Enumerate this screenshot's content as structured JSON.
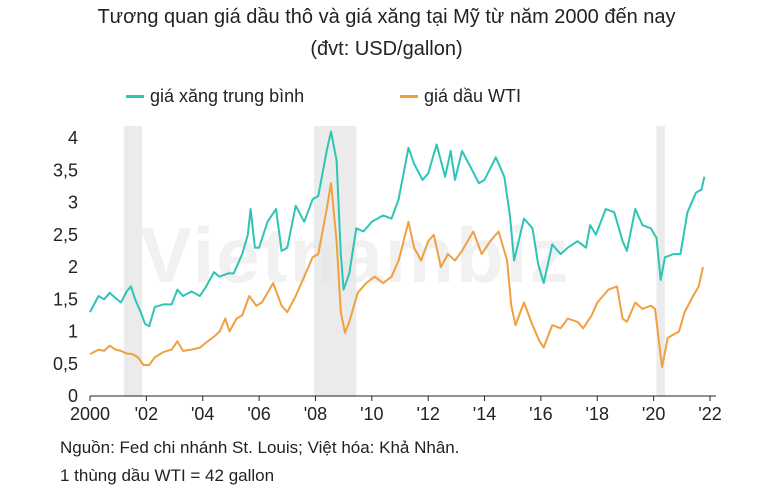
{
  "title_line1": "Tương quan giá dầu thô và giá xăng tại Mỹ từ năm 2000 đến nay",
  "title_line2": "(đvt: USD/gallon)",
  "source_line1": "Nguồn: Fed chi nhánh St. Louis; Việt hóa: Khả Nhân.",
  "source_line2": "1 thùng dầu WTI = 42 gallon",
  "watermark": "Vietnambiz",
  "colors": {
    "gas": "#2ec4b6",
    "oil": "#f0a040",
    "recession": "#e6e6e6",
    "axis": "#222222"
  },
  "chart_data": {
    "type": "line",
    "xlim": [
      2000,
      2022
    ],
    "ylim": [
      0,
      4
    ],
    "grid": false,
    "legend_position": "top",
    "x_ticks": [
      {
        "value": 2000,
        "label": "2000"
      },
      {
        "value": 2002,
        "label": "'02"
      },
      {
        "value": 2004,
        "label": "'04"
      },
      {
        "value": 2006,
        "label": "'06"
      },
      {
        "value": 2008,
        "label": "'08"
      },
      {
        "value": 2010,
        "label": "'10"
      },
      {
        "value": 2012,
        "label": "'12"
      },
      {
        "value": 2014,
        "label": "'14"
      },
      {
        "value": 2016,
        "label": "'16"
      },
      {
        "value": 2018,
        "label": "'18"
      },
      {
        "value": 2020,
        "label": "'20"
      },
      {
        "value": 2022,
        "label": "'22"
      }
    ],
    "y_ticks": [
      {
        "value": 0,
        "label": "0"
      },
      {
        "value": 0.5,
        "label": "0,5"
      },
      {
        "value": 1,
        "label": "1"
      },
      {
        "value": 1.5,
        "label": "1,5"
      },
      {
        "value": 2,
        "label": "2"
      },
      {
        "value": 2.5,
        "label": "2,5"
      },
      {
        "value": 3,
        "label": "3"
      },
      {
        "value": 3.5,
        "label": "3,5"
      },
      {
        "value": 4,
        "label": "4"
      }
    ],
    "recessions": [
      [
        2001.2,
        2001.85
      ],
      [
        2007.95,
        2009.45
      ],
      [
        2020.1,
        2020.4
      ]
    ],
    "series": [
      {
        "name": "giá xăng trung bình",
        "color": "#2ec4b6",
        "points": [
          [
            2000.0,
            1.3
          ],
          [
            2000.3,
            1.55
          ],
          [
            2000.5,
            1.5
          ],
          [
            2000.7,
            1.6
          ],
          [
            2000.9,
            1.52
          ],
          [
            2001.1,
            1.45
          ],
          [
            2001.3,
            1.62
          ],
          [
            2001.45,
            1.7
          ],
          [
            2001.6,
            1.5
          ],
          [
            2001.8,
            1.3
          ],
          [
            2001.95,
            1.12
          ],
          [
            2002.1,
            1.08
          ],
          [
            2002.3,
            1.38
          ],
          [
            2002.6,
            1.42
          ],
          [
            2002.9,
            1.42
          ],
          [
            2003.1,
            1.65
          ],
          [
            2003.3,
            1.55
          ],
          [
            2003.6,
            1.62
          ],
          [
            2003.9,
            1.55
          ],
          [
            2004.1,
            1.68
          ],
          [
            2004.4,
            1.92
          ],
          [
            2004.6,
            1.85
          ],
          [
            2004.9,
            1.9
          ],
          [
            2005.1,
            1.9
          ],
          [
            2005.4,
            2.2
          ],
          [
            2005.6,
            2.5
          ],
          [
            2005.7,
            2.9
          ],
          [
            2005.85,
            2.3
          ],
          [
            2006.0,
            2.3
          ],
          [
            2006.3,
            2.7
          ],
          [
            2006.6,
            2.9
          ],
          [
            2006.8,
            2.25
          ],
          [
            2007.0,
            2.3
          ],
          [
            2007.3,
            2.95
          ],
          [
            2007.6,
            2.7
          ],
          [
            2007.9,
            3.05
          ],
          [
            2008.1,
            3.1
          ],
          [
            2008.4,
            3.8
          ],
          [
            2008.55,
            4.1
          ],
          [
            2008.75,
            3.65
          ],
          [
            2008.9,
            2.2
          ],
          [
            2009.0,
            1.65
          ],
          [
            2009.2,
            1.9
          ],
          [
            2009.45,
            2.6
          ],
          [
            2009.7,
            2.55
          ],
          [
            2010.0,
            2.7
          ],
          [
            2010.4,
            2.8
          ],
          [
            2010.7,
            2.75
          ],
          [
            2010.95,
            3.05
          ],
          [
            2011.3,
            3.85
          ],
          [
            2011.5,
            3.6
          ],
          [
            2011.8,
            3.35
          ],
          [
            2012.0,
            3.45
          ],
          [
            2012.3,
            3.9
          ],
          [
            2012.6,
            3.4
          ],
          [
            2012.8,
            3.8
          ],
          [
            2012.95,
            3.35
          ],
          [
            2013.2,
            3.8
          ],
          [
            2013.5,
            3.55
          ],
          [
            2013.8,
            3.3
          ],
          [
            2014.0,
            3.35
          ],
          [
            2014.4,
            3.7
          ],
          [
            2014.7,
            3.4
          ],
          [
            2014.9,
            2.8
          ],
          [
            2015.05,
            2.1
          ],
          [
            2015.4,
            2.75
          ],
          [
            2015.7,
            2.6
          ],
          [
            2015.9,
            2.05
          ],
          [
            2016.1,
            1.75
          ],
          [
            2016.4,
            2.35
          ],
          [
            2016.7,
            2.2
          ],
          [
            2016.95,
            2.3
          ],
          [
            2017.3,
            2.4
          ],
          [
            2017.6,
            2.3
          ],
          [
            2017.75,
            2.65
          ],
          [
            2017.95,
            2.5
          ],
          [
            2018.3,
            2.9
          ],
          [
            2018.6,
            2.85
          ],
          [
            2018.9,
            2.4
          ],
          [
            2019.05,
            2.25
          ],
          [
            2019.35,
            2.9
          ],
          [
            2019.6,
            2.65
          ],
          [
            2019.9,
            2.6
          ],
          [
            2020.1,
            2.45
          ],
          [
            2020.25,
            1.8
          ],
          [
            2020.4,
            2.15
          ],
          [
            2020.7,
            2.2
          ],
          [
            2020.95,
            2.2
          ],
          [
            2021.2,
            2.85
          ],
          [
            2021.5,
            3.15
          ],
          [
            2021.7,
            3.2
          ],
          [
            2021.8,
            3.4
          ]
        ]
      },
      {
        "name": "giá dầu WTI",
        "color": "#f0a040",
        "points": [
          [
            2000.0,
            0.65
          ],
          [
            2000.3,
            0.72
          ],
          [
            2000.5,
            0.7
          ],
          [
            2000.7,
            0.78
          ],
          [
            2000.9,
            0.72
          ],
          [
            2001.1,
            0.7
          ],
          [
            2001.3,
            0.66
          ],
          [
            2001.5,
            0.65
          ],
          [
            2001.7,
            0.6
          ],
          [
            2001.9,
            0.48
          ],
          [
            2002.1,
            0.48
          ],
          [
            2002.3,
            0.6
          ],
          [
            2002.6,
            0.68
          ],
          [
            2002.9,
            0.72
          ],
          [
            2003.1,
            0.85
          ],
          [
            2003.3,
            0.7
          ],
          [
            2003.6,
            0.72
          ],
          [
            2003.9,
            0.75
          ],
          [
            2004.1,
            0.82
          ],
          [
            2004.4,
            0.92
          ],
          [
            2004.6,
            1.0
          ],
          [
            2004.8,
            1.2
          ],
          [
            2004.95,
            1.0
          ],
          [
            2005.2,
            1.2
          ],
          [
            2005.4,
            1.25
          ],
          [
            2005.65,
            1.55
          ],
          [
            2005.9,
            1.4
          ],
          [
            2006.1,
            1.45
          ],
          [
            2006.5,
            1.75
          ],
          [
            2006.8,
            1.4
          ],
          [
            2007.0,
            1.3
          ],
          [
            2007.3,
            1.55
          ],
          [
            2007.6,
            1.85
          ],
          [
            2007.9,
            2.15
          ],
          [
            2008.1,
            2.2
          ],
          [
            2008.4,
            2.9
          ],
          [
            2008.55,
            3.3
          ],
          [
            2008.75,
            2.4
          ],
          [
            2008.9,
            1.3
          ],
          [
            2009.05,
            0.98
          ],
          [
            2009.2,
            1.15
          ],
          [
            2009.5,
            1.6
          ],
          [
            2009.8,
            1.75
          ],
          [
            2010.1,
            1.85
          ],
          [
            2010.4,
            1.75
          ],
          [
            2010.7,
            1.85
          ],
          [
            2010.95,
            2.1
          ],
          [
            2011.3,
            2.7
          ],
          [
            2011.5,
            2.3
          ],
          [
            2011.75,
            2.1
          ],
          [
            2012.0,
            2.4
          ],
          [
            2012.2,
            2.5
          ],
          [
            2012.45,
            2.0
          ],
          [
            2012.7,
            2.2
          ],
          [
            2012.95,
            2.1
          ],
          [
            2013.2,
            2.25
          ],
          [
            2013.6,
            2.55
          ],
          [
            2013.9,
            2.2
          ],
          [
            2014.2,
            2.4
          ],
          [
            2014.5,
            2.55
          ],
          [
            2014.8,
            2.1
          ],
          [
            2014.95,
            1.4
          ],
          [
            2015.1,
            1.1
          ],
          [
            2015.4,
            1.45
          ],
          [
            2015.7,
            1.1
          ],
          [
            2015.95,
            0.85
          ],
          [
            2016.1,
            0.75
          ],
          [
            2016.4,
            1.1
          ],
          [
            2016.7,
            1.05
          ],
          [
            2016.95,
            1.2
          ],
          [
            2017.3,
            1.15
          ],
          [
            2017.5,
            1.05
          ],
          [
            2017.8,
            1.25
          ],
          [
            2018.0,
            1.45
          ],
          [
            2018.4,
            1.65
          ],
          [
            2018.7,
            1.7
          ],
          [
            2018.9,
            1.2
          ],
          [
            2019.05,
            1.15
          ],
          [
            2019.35,
            1.45
          ],
          [
            2019.6,
            1.35
          ],
          [
            2019.9,
            1.4
          ],
          [
            2020.05,
            1.35
          ],
          [
            2020.2,
            0.8
          ],
          [
            2020.3,
            0.45
          ],
          [
            2020.5,
            0.9
          ],
          [
            2020.9,
            1.0
          ],
          [
            2021.1,
            1.3
          ],
          [
            2021.4,
            1.55
          ],
          [
            2021.6,
            1.7
          ],
          [
            2021.75,
            2.0
          ]
        ]
      }
    ]
  }
}
